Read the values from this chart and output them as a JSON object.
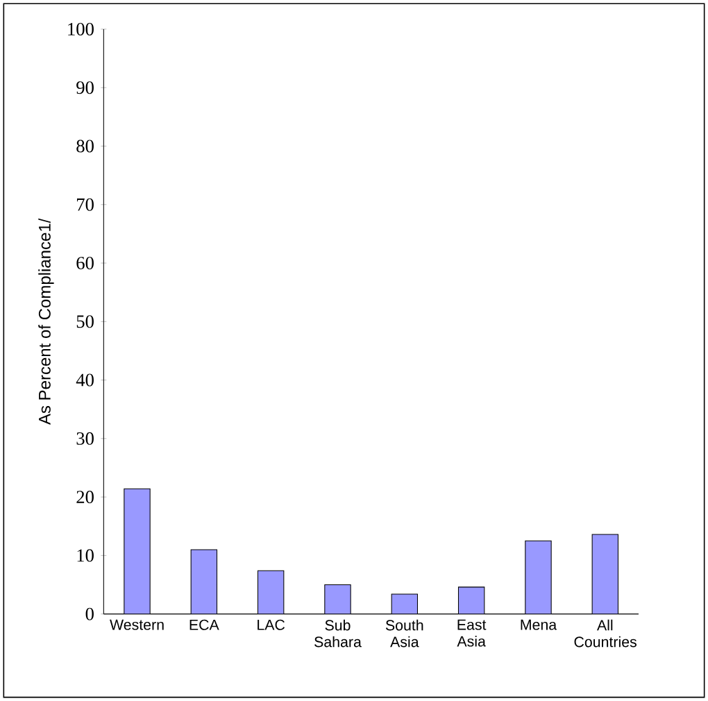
{
  "chart_data": {
    "type": "bar",
    "ylabel": "As Percent of Compliance1/",
    "categories": [
      "Western",
      "ECA",
      "LAC",
      "Sub Sahara",
      "South Asia",
      "East Asia",
      "Mena",
      "All Countries"
    ],
    "values": [
      21.4,
      11.0,
      7.4,
      5.0,
      3.4,
      4.6,
      12.5,
      13.6
    ],
    "color": "#9999ff",
    "ylim": [
      0,
      100
    ],
    "yticks": [
      0,
      10,
      20,
      30,
      40,
      50,
      60,
      70,
      80,
      90,
      100
    ],
    "grid": false
  }
}
